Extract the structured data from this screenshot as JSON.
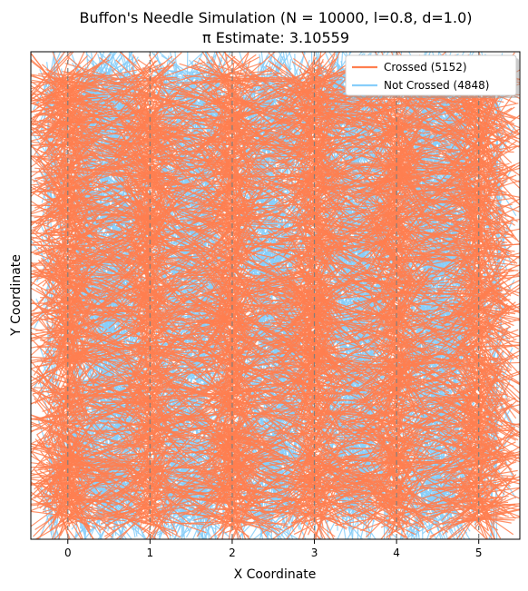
{
  "chart_data": {
    "type": "line",
    "title": "Buffon's Needle Simulation (N = 10000, l=0.8, d=1.0)",
    "subtitle": "π Estimate: 3.10559",
    "xlabel": "X Coordinate",
    "ylabel": "Y Coordinate",
    "xlim": [
      -0.45,
      5.5
    ],
    "ylim": [
      -0.45,
      5.5
    ],
    "x_ticks": [
      0,
      1,
      2,
      3,
      4,
      5
    ],
    "x_tick_labels": [
      "0",
      "1",
      "2",
      "3",
      "4",
      "5"
    ],
    "y_ticks_shown": false,
    "grid": false,
    "parallel_lines_x": [
      0,
      1,
      2,
      3,
      4,
      5
    ],
    "legend_position": "top-right",
    "series": [
      {
        "name": "Crossed (5152)",
        "color": "#FF7F50",
        "count": 5152
      },
      {
        "name": "Not Crossed (4848)",
        "color": "#87CEFA",
        "count": 4848
      }
    ],
    "simulation": {
      "N": 10000,
      "needle_length": 0.8,
      "line_spacing": 1.0,
      "pi_estimate": 3.10559
    }
  }
}
